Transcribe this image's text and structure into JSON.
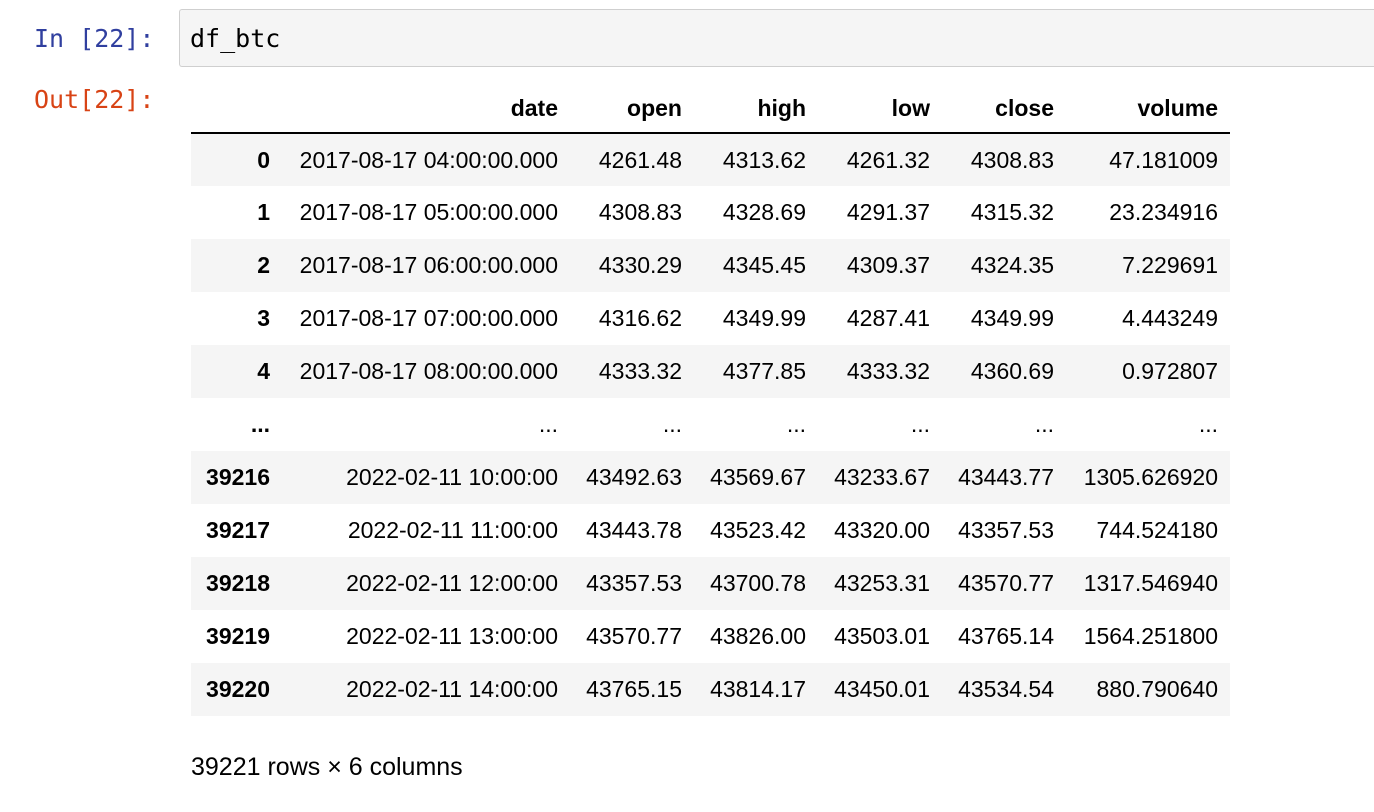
{
  "input_cell": {
    "prompt": "In [22]:",
    "code": "df_btc"
  },
  "output_cell": {
    "prompt": "Out[22]:",
    "columns": [
      "",
      "date",
      "open",
      "high",
      "low",
      "close",
      "volume"
    ],
    "rows": [
      [
        "0",
        "2017-08-17 04:00:00.000",
        "4261.48",
        "4313.62",
        "4261.32",
        "4308.83",
        "47.181009"
      ],
      [
        "1",
        "2017-08-17 05:00:00.000",
        "4308.83",
        "4328.69",
        "4291.37",
        "4315.32",
        "23.234916"
      ],
      [
        "2",
        "2017-08-17 06:00:00.000",
        "4330.29",
        "4345.45",
        "4309.37",
        "4324.35",
        "7.229691"
      ],
      [
        "3",
        "2017-08-17 07:00:00.000",
        "4316.62",
        "4349.99",
        "4287.41",
        "4349.99",
        "4.443249"
      ],
      [
        "4",
        "2017-08-17 08:00:00.000",
        "4333.32",
        "4377.85",
        "4333.32",
        "4360.69",
        "0.972807"
      ],
      [
        "...",
        "...",
        "...",
        "...",
        "...",
        "...",
        "..."
      ],
      [
        "39216",
        "2022-02-11 10:00:00",
        "43492.63",
        "43569.67",
        "43233.67",
        "43443.77",
        "1305.626920"
      ],
      [
        "39217",
        "2022-02-11 11:00:00",
        "43443.78",
        "43523.42",
        "43320.00",
        "43357.53",
        "744.524180"
      ],
      [
        "39218",
        "2022-02-11 12:00:00",
        "43357.53",
        "43700.78",
        "43253.31",
        "43570.77",
        "1317.546940"
      ],
      [
        "39219",
        "2022-02-11 13:00:00",
        "43570.77",
        "43826.00",
        "43503.01",
        "43765.14",
        "1564.251800"
      ],
      [
        "39220",
        "2022-02-11 14:00:00",
        "43765.15",
        "43814.17",
        "43450.01",
        "43534.54",
        "880.790640"
      ]
    ],
    "summary": "39221 rows × 6 columns"
  },
  "colors": {
    "in_prompt": "#303F9F",
    "out_prompt": "#D84315",
    "input_bg": "#f5f5f5",
    "input_border": "#cfcfcf",
    "striped_row": "#f5f5f5"
  }
}
